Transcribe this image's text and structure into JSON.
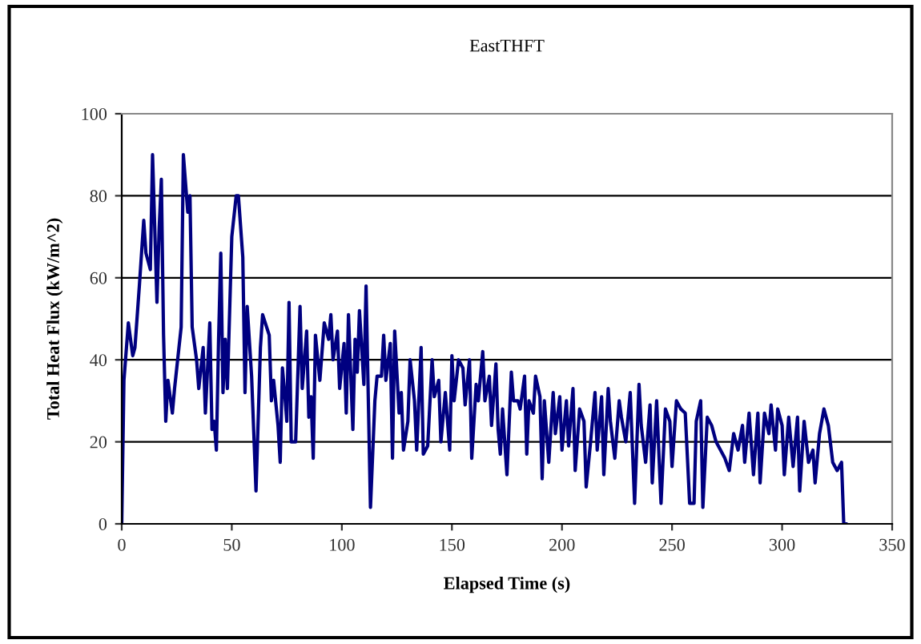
{
  "chart_data": {
    "type": "line",
    "title": "EastTHFT",
    "xlabel": "Elapsed Time (s)",
    "ylabel": "Total Heat Flux (kW/m^2)",
    "xlim": [
      0,
      350
    ],
    "ylim": [
      0,
      100
    ],
    "xticks": [
      0,
      50,
      100,
      150,
      200,
      250,
      300,
      350
    ],
    "yticks": [
      0,
      20,
      40,
      60,
      80,
      100
    ],
    "grid": "y",
    "legend": false,
    "marker": "none",
    "line_style": "solid",
    "series": [
      {
        "color": "#000080",
        "x": [
          0,
          1,
          3,
          5,
          6,
          8,
          10,
          11,
          13,
          14,
          16,
          17,
          18,
          19,
          20,
          21,
          23,
          24,
          27,
          28,
          30,
          31,
          32,
          34,
          35,
          37,
          38,
          40,
          41,
          42,
          43,
          44,
          45,
          46,
          47,
          48,
          50,
          52,
          53,
          55,
          56,
          57,
          59,
          61,
          63,
          64,
          67,
          68,
          69,
          71,
          72,
          73,
          74,
          75,
          76,
          77,
          79,
          81,
          82,
          84,
          85,
          86,
          87,
          88,
          90,
          92,
          94,
          95,
          96,
          98,
          99,
          101,
          102,
          103,
          105,
          106,
          107,
          108,
          110,
          111,
          113,
          115,
          116,
          118,
          119,
          120,
          122,
          123,
          124,
          126,
          127,
          128,
          130,
          131,
          133,
          134,
          136,
          137,
          139,
          141,
          142,
          144,
          145,
          147,
          149,
          150,
          151,
          153,
          155,
          156,
          158,
          159,
          161,
          162,
          164,
          165,
          167,
          168,
          170,
          171,
          172,
          173,
          175,
          177,
          178,
          180,
          181,
          183,
          184,
          185,
          187,
          188,
          190,
          191,
          192,
          194,
          196,
          197,
          199,
          200,
          202,
          203,
          205,
          206,
          208,
          210,
          211,
          213,
          215,
          216,
          218,
          219,
          221,
          222,
          224,
          226,
          227,
          229,
          231,
          233,
          235,
          236,
          238,
          240,
          241,
          243,
          245,
          247,
          249,
          250,
          252,
          254,
          256,
          258,
          260,
          261,
          263,
          264,
          266,
          268,
          270,
          272,
          274,
          276,
          278,
          280,
          282,
          283,
          285,
          287,
          289,
          290,
          292,
          294,
          295,
          297,
          298,
          300,
          301,
          303,
          305,
          307,
          308,
          310,
          312,
          314,
          315,
          317,
          319,
          321,
          323,
          325,
          327,
          328,
          329
        ],
        "values": [
          0,
          35,
          49,
          41,
          43,
          58,
          74,
          66,
          62,
          90,
          54,
          72,
          84,
          46,
          25,
          35,
          27,
          33,
          48,
          90,
          76,
          80,
          48,
          40,
          33,
          43,
          27,
          49,
          23,
          25,
          18,
          45,
          66,
          32,
          45,
          33,
          70,
          80,
          80,
          65,
          32,
          53,
          36,
          8,
          43,
          51,
          46,
          30,
          35,
          24,
          15,
          38,
          32,
          25,
          54,
          20,
          20,
          53,
          33,
          47,
          26,
          31,
          16,
          46,
          35,
          49,
          45,
          51,
          40,
          47,
          33,
          44,
          27,
          51,
          23,
          45,
          37,
          52,
          34,
          58,
          4,
          30,
          36,
          36,
          46,
          35,
          44,
          16,
          47,
          27,
          32,
          18,
          25,
          40,
          30,
          18,
          43,
          17,
          19,
          40,
          31,
          35,
          20,
          32,
          18,
          41,
          30,
          40,
          38,
          29,
          40,
          16,
          34,
          30,
          42,
          30,
          36,
          24,
          39,
          23,
          17,
          28,
          12,
          37,
          30,
          30,
          28,
          36,
          17,
          30,
          27,
          36,
          31,
          11,
          30,
          15,
          32,
          22,
          31,
          18,
          30,
          19,
          33,
          13,
          28,
          25,
          9,
          20,
          32,
          18,
          31,
          12,
          33,
          25,
          16,
          30,
          26,
          20,
          32,
          5,
          34,
          24,
          15,
          29,
          10,
          30,
          5,
          28,
          25,
          14,
          30,
          28,
          27,
          5,
          5,
          25,
          30,
          4,
          26,
          24,
          20,
          18,
          16,
          13,
          22,
          18,
          24,
          15,
          27,
          12,
          27,
          10,
          27,
          22,
          29,
          18,
          28,
          24,
          12,
          26,
          14,
          26,
          8,
          25,
          15,
          18,
          10,
          22,
          28,
          24,
          15,
          13,
          15,
          0,
          0
        ]
      }
    ]
  }
}
